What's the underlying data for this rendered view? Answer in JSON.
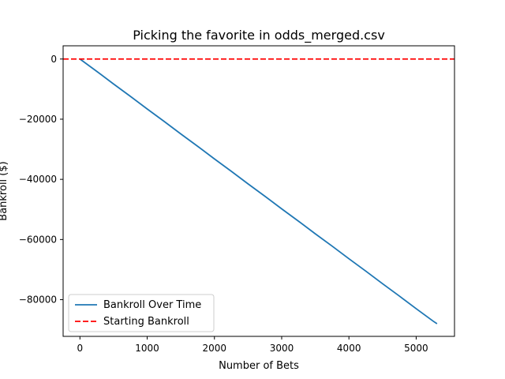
{
  "chart_data": {
    "type": "line",
    "title": "Picking the favorite in odds_merged.csv",
    "xlabel": "Number of Bets",
    "ylabel": "Bankroll ($)",
    "xlim": [
      -250,
      5570
    ],
    "ylim": [
      -92200,
      4400
    ],
    "xticks": [
      0,
      1000,
      2000,
      3000,
      4000,
      5000
    ],
    "xtick_labels": [
      "0",
      "1000",
      "2000",
      "3000",
      "4000",
      "5000"
    ],
    "yticks": [
      0,
      -20000,
      -40000,
      -60000,
      -80000
    ],
    "ytick_labels": [
      "0",
      "−20000",
      "−40000",
      "−60000",
      "−80000"
    ],
    "grid": false,
    "legend_position": "lower-left",
    "series": [
      {
        "name": "Bankroll Over Time",
        "style": "solid",
        "color": "#1f77b4",
        "x": [
          0,
          250,
          500,
          750,
          1000,
          1250,
          1500,
          1750,
          2000,
          2250,
          2500,
          2750,
          3000,
          3250,
          3500,
          3750,
          4000,
          4250,
          4500,
          4750,
          5000,
          5250,
          5310
        ],
        "y": [
          0,
          -4100,
          -8300,
          -12400,
          -16600,
          -20700,
          -24900,
          -29000,
          -33200,
          -37300,
          -41500,
          -45600,
          -49800,
          -53900,
          -58100,
          -62200,
          -66400,
          -70500,
          -74700,
          -78800,
          -83000,
          -87100,
          -88000
        ]
      },
      {
        "name": "Starting Bankroll",
        "style": "dashed",
        "color": "#ff0000",
        "y_constant": 0
      }
    ]
  }
}
